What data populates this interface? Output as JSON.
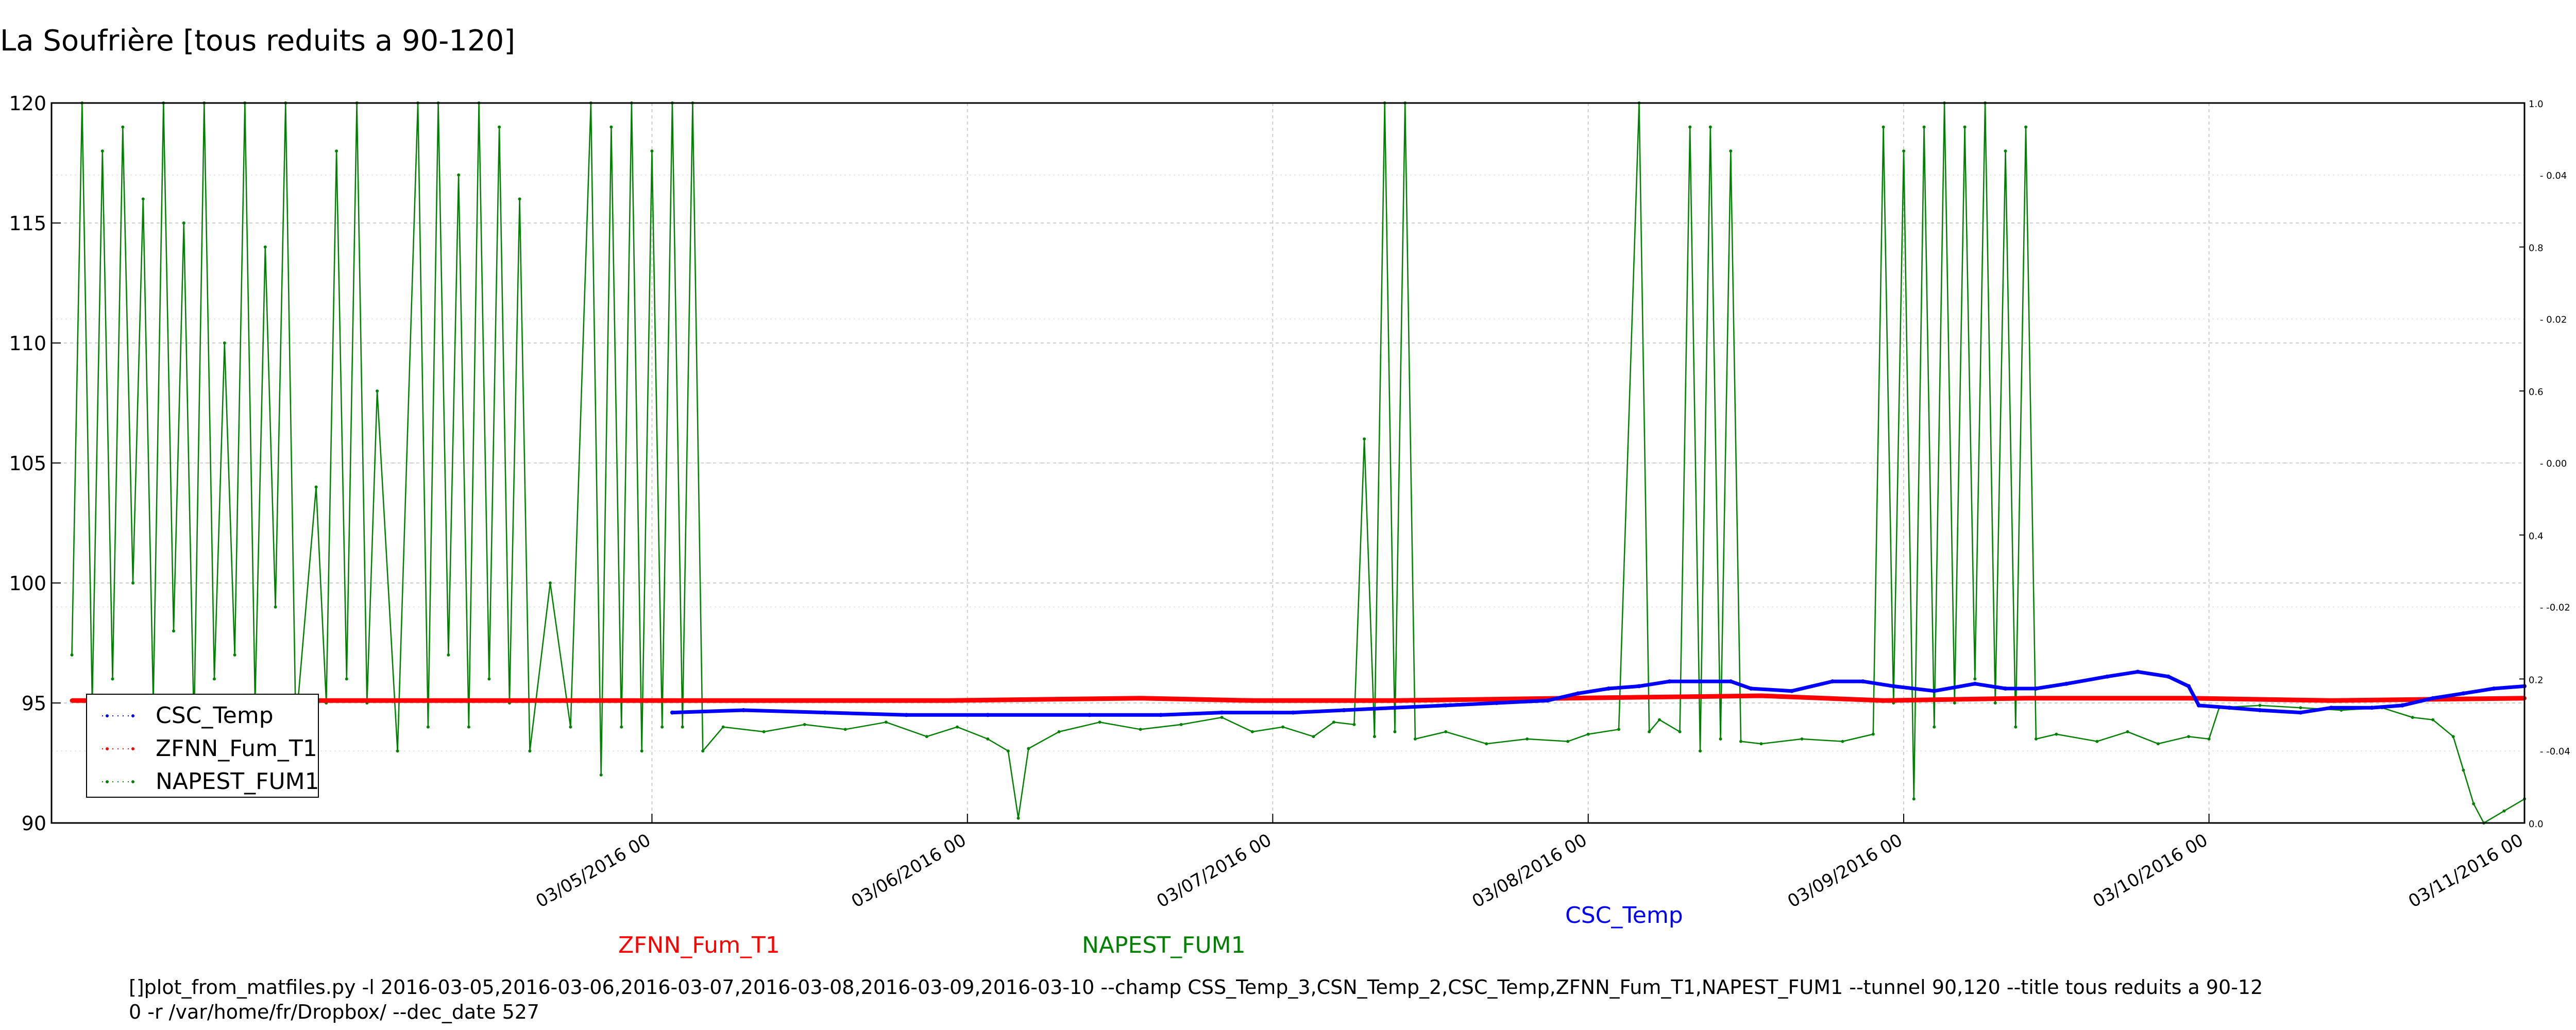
{
  "chart_data": {
    "type": "line",
    "title": "La Soufrière [tous reduits a 90-120]",
    "xlabel": "",
    "ylabel": "",
    "ylim": [
      90,
      120
    ],
    "y_ticks": [
      "90",
      "95",
      "100",
      "105",
      "110",
      "115",
      "120"
    ],
    "x_range": [
      "2016-03-05",
      "2016-11-03"
    ],
    "x_ticks": [
      {
        "date": "2016-05-03",
        "label": "03/05/2016 00"
      },
      {
        "date": "2016-06-03",
        "label": "03/06/2016 00"
      },
      {
        "date": "2016-07-03",
        "label": "03/07/2016 00"
      },
      {
        "date": "2016-08-03",
        "label": "03/08/2016 00"
      },
      {
        "date": "2016-09-03",
        "label": "03/09/2016 00"
      },
      {
        "date": "2016-10-03",
        "label": "03/10/2016 00"
      },
      {
        "date": "2016-11-03",
        "label": "03/11/2016 00"
      }
    ],
    "secondary_axis_ticks": [
      "0.0",
      "0.2",
      "0.4",
      "0.6",
      "0.8",
      "1.0"
    ],
    "secondary_axis_minor_ticks": [
      "-0.04",
      "-0.02",
      "0.00",
      "0.02",
      "0.04"
    ],
    "grid": true,
    "legend_position": "lower-left",
    "series": [
      {
        "name": "CSC_Temp",
        "color": "#0000ff",
        "points": [
          [
            "2016-05-05",
            94.6
          ],
          [
            "2016-05-12",
            94.7
          ],
          [
            "2016-05-20",
            94.6
          ],
          [
            "2016-05-28",
            94.5
          ],
          [
            "2016-06-05",
            94.5
          ],
          [
            "2016-06-15",
            94.5
          ],
          [
            "2016-06-22",
            94.5
          ],
          [
            "2016-06-28",
            94.6
          ],
          [
            "2016-07-05",
            94.6
          ],
          [
            "2016-07-10",
            94.7
          ],
          [
            "2016-07-15",
            94.8
          ],
          [
            "2016-07-20",
            94.9
          ],
          [
            "2016-07-25",
            95.0
          ],
          [
            "2016-07-30",
            95.1
          ],
          [
            "2016-08-02",
            95.4
          ],
          [
            "2016-08-05",
            95.6
          ],
          [
            "2016-08-08",
            95.7
          ],
          [
            "2016-08-11",
            95.9
          ],
          [
            "2016-08-14",
            95.9
          ],
          [
            "2016-08-17",
            95.9
          ],
          [
            "2016-08-19",
            95.6
          ],
          [
            "2016-08-23",
            95.5
          ],
          [
            "2016-08-27",
            95.9
          ],
          [
            "2016-08-30",
            95.9
          ],
          [
            "2016-09-02",
            95.7
          ],
          [
            "2016-09-06",
            95.5
          ],
          [
            "2016-09-10",
            95.8
          ],
          [
            "2016-09-13",
            95.6
          ],
          [
            "2016-09-16",
            95.6
          ],
          [
            "2016-09-19",
            95.8
          ],
          [
            "2016-09-23",
            96.1
          ],
          [
            "2016-09-26",
            96.3
          ],
          [
            "2016-09-29",
            96.1
          ],
          [
            "2016-10-01",
            95.7
          ],
          [
            "2016-10-02",
            94.9
          ],
          [
            "2016-10-05",
            94.8
          ],
          [
            "2016-10-08",
            94.7
          ],
          [
            "2016-10-12",
            94.6
          ],
          [
            "2016-10-15",
            94.8
          ],
          [
            "2016-10-19",
            94.8
          ],
          [
            "2016-10-22",
            94.9
          ],
          [
            "2016-10-25",
            95.2
          ],
          [
            "2016-10-28",
            95.4
          ],
          [
            "2016-10-31",
            95.6
          ],
          [
            "2016-11-03",
            95.7
          ]
        ]
      },
      {
        "name": "ZFNN_Fum_T1",
        "color": "#ff0000",
        "points": [
          [
            "2016-03-07",
            95.1
          ],
          [
            "2016-04-01",
            95.1
          ],
          [
            "2016-05-01",
            95.1
          ],
          [
            "2016-06-01",
            95.1
          ],
          [
            "2016-06-20",
            95.2
          ],
          [
            "2016-07-01",
            95.1
          ],
          [
            "2016-07-15",
            95.1
          ],
          [
            "2016-08-01",
            95.2
          ],
          [
            "2016-08-20",
            95.3
          ],
          [
            "2016-09-01",
            95.1
          ],
          [
            "2016-09-15",
            95.2
          ],
          [
            "2016-10-01",
            95.2
          ],
          [
            "2016-10-15",
            95.1
          ],
          [
            "2016-11-03",
            95.2
          ]
        ]
      },
      {
        "name": "NAPEST_FUM1",
        "color": "#008000",
        "points": [
          [
            "2016-03-07",
            97
          ],
          [
            "2016-03-08",
            120
          ],
          [
            "2016-03-09",
            95
          ],
          [
            "2016-03-10",
            118
          ],
          [
            "2016-03-11",
            96
          ],
          [
            "2016-03-12",
            119
          ],
          [
            "2016-03-13",
            100
          ],
          [
            "2016-03-14",
            116
          ],
          [
            "2016-03-15",
            95
          ],
          [
            "2016-03-16",
            120
          ],
          [
            "2016-03-17",
            98
          ],
          [
            "2016-03-18",
            115
          ],
          [
            "2016-03-19",
            94
          ],
          [
            "2016-03-20",
            120
          ],
          [
            "2016-03-21",
            96
          ],
          [
            "2016-03-22",
            110
          ],
          [
            "2016-03-23",
            97
          ],
          [
            "2016-03-24",
            120
          ],
          [
            "2016-03-25",
            95
          ],
          [
            "2016-03-26",
            114
          ],
          [
            "2016-03-27",
            99
          ],
          [
            "2016-03-28",
            120
          ],
          [
            "2016-03-29",
            94
          ],
          [
            "2016-03-31",
            104
          ],
          [
            "2016-04-01",
            95
          ],
          [
            "2016-04-02",
            118
          ],
          [
            "2016-04-03",
            96
          ],
          [
            "2016-04-04",
            120
          ],
          [
            "2016-04-05",
            95
          ],
          [
            "2016-04-06",
            108
          ],
          [
            "2016-04-08",
            93
          ],
          [
            "2016-04-10",
            120
          ],
          [
            "2016-04-11",
            94
          ],
          [
            "2016-04-12",
            120
          ],
          [
            "2016-04-13",
            97
          ],
          [
            "2016-04-14",
            117
          ],
          [
            "2016-04-15",
            94
          ],
          [
            "2016-04-16",
            120
          ],
          [
            "2016-04-17",
            96
          ],
          [
            "2016-04-18",
            119
          ],
          [
            "2016-04-19",
            95
          ],
          [
            "2016-04-20",
            116
          ],
          [
            "2016-04-21",
            93
          ],
          [
            "2016-04-23",
            100
          ],
          [
            "2016-04-25",
            94
          ],
          [
            "2016-04-27",
            120
          ],
          [
            "2016-04-28",
            92
          ],
          [
            "2016-04-29",
            119
          ],
          [
            "2016-04-30",
            94
          ],
          [
            "2016-05-01",
            120
          ],
          [
            "2016-05-02",
            93
          ],
          [
            "2016-05-03",
            118
          ],
          [
            "2016-05-04",
            94
          ],
          [
            "2016-05-05",
            120
          ],
          [
            "2016-05-06",
            94
          ],
          [
            "2016-05-07",
            120
          ],
          [
            "2016-05-08",
            93
          ],
          [
            "2016-05-10",
            94
          ],
          [
            "2016-05-14",
            93.8
          ],
          [
            "2016-05-18",
            94.1
          ],
          [
            "2016-05-22",
            93.9
          ],
          [
            "2016-05-26",
            94.2
          ],
          [
            "2016-05-30",
            93.6
          ],
          [
            "2016-06-02",
            94.0
          ],
          [
            "2016-06-05",
            93.5
          ],
          [
            "2016-06-07",
            93.0
          ],
          [
            "2016-06-08",
            90.2
          ],
          [
            "2016-06-09",
            93.1
          ],
          [
            "2016-06-12",
            93.8
          ],
          [
            "2016-06-16",
            94.2
          ],
          [
            "2016-06-20",
            93.9
          ],
          [
            "2016-06-24",
            94.1
          ],
          [
            "2016-06-28",
            94.4
          ],
          [
            "2016-07-01",
            93.8
          ],
          [
            "2016-07-04",
            94.0
          ],
          [
            "2016-07-07",
            93.6
          ],
          [
            "2016-07-09",
            94.2
          ],
          [
            "2016-07-11",
            94.1
          ],
          [
            "2016-07-12",
            106
          ],
          [
            "2016-07-13",
            93.6
          ],
          [
            "2016-07-14",
            120
          ],
          [
            "2016-07-15",
            93.8
          ],
          [
            "2016-07-16",
            120
          ],
          [
            "2016-07-17",
            93.5
          ],
          [
            "2016-07-20",
            93.8
          ],
          [
            "2016-07-24",
            93.3
          ],
          [
            "2016-07-28",
            93.5
          ],
          [
            "2016-08-01",
            93.4
          ],
          [
            "2016-08-03",
            93.7
          ],
          [
            "2016-08-06",
            93.9
          ],
          [
            "2016-08-08",
            120
          ],
          [
            "2016-08-09",
            93.8
          ],
          [
            "2016-08-10",
            94.3
          ],
          [
            "2016-08-12",
            93.8
          ],
          [
            "2016-08-13",
            119
          ],
          [
            "2016-08-14",
            93.0
          ],
          [
            "2016-08-15",
            119
          ],
          [
            "2016-08-16",
            93.5
          ],
          [
            "2016-08-17",
            118
          ],
          [
            "2016-08-18",
            93.4
          ],
          [
            "2016-08-20",
            93.3
          ],
          [
            "2016-08-24",
            93.5
          ],
          [
            "2016-08-28",
            93.4
          ],
          [
            "2016-08-31",
            93.7
          ],
          [
            "2016-09-01",
            119
          ],
          [
            "2016-09-02",
            95
          ],
          [
            "2016-09-03",
            118
          ],
          [
            "2016-09-04",
            91
          ],
          [
            "2016-09-05",
            119
          ],
          [
            "2016-09-06",
            94
          ],
          [
            "2016-09-07",
            120
          ],
          [
            "2016-09-08",
            95
          ],
          [
            "2016-09-09",
            119
          ],
          [
            "2016-09-10",
            96
          ],
          [
            "2016-09-11",
            120
          ],
          [
            "2016-09-12",
            95
          ],
          [
            "2016-09-13",
            118
          ],
          [
            "2016-09-14",
            94
          ],
          [
            "2016-09-15",
            119
          ],
          [
            "2016-09-16",
            93.5
          ],
          [
            "2016-09-18",
            93.7
          ],
          [
            "2016-09-22",
            93.4
          ],
          [
            "2016-09-25",
            93.8
          ],
          [
            "2016-09-28",
            93.3
          ],
          [
            "2016-10-01",
            93.6
          ],
          [
            "2016-10-03",
            93.5
          ],
          [
            "2016-10-04",
            94.8
          ],
          [
            "2016-10-08",
            94.9
          ],
          [
            "2016-10-12",
            94.8
          ],
          [
            "2016-10-16",
            94.7
          ],
          [
            "2016-10-20",
            94.8
          ],
          [
            "2016-10-23",
            94.4
          ],
          [
            "2016-10-25",
            94.3
          ],
          [
            "2016-10-27",
            93.6
          ],
          [
            "2016-10-28",
            92.2
          ],
          [
            "2016-10-29",
            90.8
          ],
          [
            "2016-10-30",
            90.0
          ],
          [
            "2016-11-01",
            90.5
          ],
          [
            "2016-11-03",
            91.0
          ]
        ]
      }
    ],
    "annotations": [
      {
        "text": "ZFNN_Fum_T1",
        "color": "#ff0000"
      },
      {
        "text": "NAPEST_FUM1",
        "color": "#008000"
      },
      {
        "text": "CSC_Temp",
        "color": "#0000ff"
      }
    ]
  },
  "command_line": [
    "[]plot_from_matfiles.py -l 2016-03-05,2016-03-06,2016-03-07,2016-03-08,2016-03-09,2016-03-10 --champ CSS_Temp_3,CSN_Temp_2,CSC_Temp,ZFNN_Fum_T1,NAPEST_FUM1 --tunnel 90,120 --title tous reduits a 90-12",
    "0 -r /var/home/fr/Dropbox/ --dec_date 527"
  ]
}
